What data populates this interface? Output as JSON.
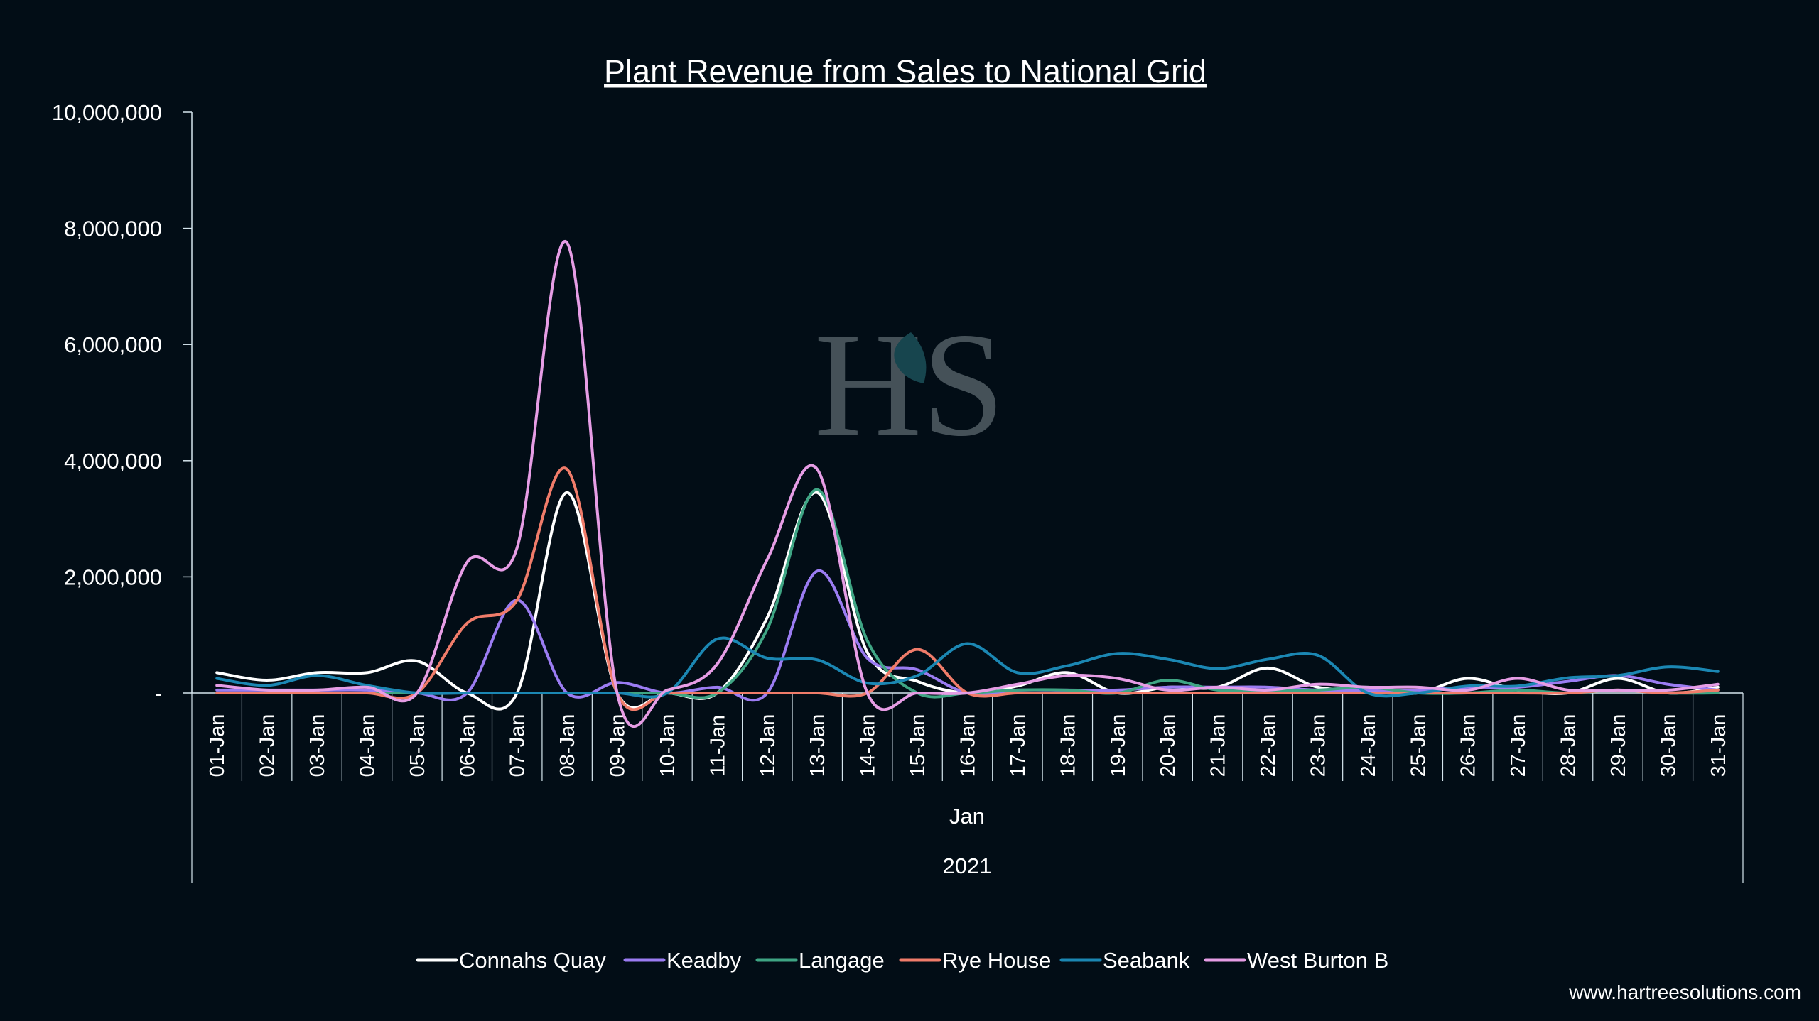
{
  "website": "www.hartreesolutions.com",
  "logo": {
    "name": "hartree-logo",
    "letters": "HS"
  },
  "chart_data": {
    "type": "line",
    "title": "Plant Revenue from Sales to National Grid",
    "xlabel": "Jan",
    "xlabel2": "2021",
    "ylabel": "",
    "ylim": [
      0,
      10000000
    ],
    "yticks": [
      "-",
      "2,000,000",
      "4,000,000",
      "6,000,000",
      "8,000,000",
      "10,000,000"
    ],
    "yticks_values": [
      0,
      2000000,
      4000000,
      6000000,
      8000000,
      10000000
    ],
    "grid": false,
    "legend_position": "bottom",
    "categories": [
      "01-Jan",
      "02-Jan",
      "03-Jan",
      "04-Jan",
      "05-Jan",
      "06-Jan",
      "07-Jan",
      "08-Jan",
      "09-Jan",
      "10-Jan",
      "11-Jan",
      "12-Jan",
      "13-Jan",
      "14-Jan",
      "15-Jan",
      "16-Jan",
      "17-Jan",
      "18-Jan",
      "19-Jan",
      "20-Jan",
      "21-Jan",
      "22-Jan",
      "23-Jan",
      "24-Jan",
      "25-Jan",
      "26-Jan",
      "27-Jan",
      "28-Jan",
      "29-Jan",
      "30-Jan",
      "31-Jan"
    ],
    "series": [
      {
        "name": "Connahs Quay",
        "color": "#ffffff",
        "values": [
          350000,
          220000,
          350000,
          350000,
          550000,
          0,
          0,
          3450000,
          0,
          0,
          0,
          1300000,
          3450000,
          700000,
          200000,
          0,
          120000,
          350000,
          0,
          100000,
          100000,
          430000,
          100000,
          50000,
          0,
          250000,
          50000,
          0,
          250000,
          0,
          100000
        ]
      },
      {
        "name": "Keadby",
        "color": "#9b7cf2",
        "values": [
          50000,
          50000,
          50000,
          50000,
          0,
          0,
          1600000,
          0,
          180000,
          0,
          100000,
          0,
          2100000,
          600000,
          400000,
          0,
          50000,
          50000,
          50000,
          100000,
          100000,
          100000,
          50000,
          50000,
          50000,
          100000,
          100000,
          200000,
          300000,
          150000,
          50000
        ]
      },
      {
        "name": "Langage",
        "color": "#3fa584",
        "values": [
          0,
          0,
          0,
          0,
          0,
          0,
          0,
          0,
          0,
          0,
          0,
          1100000,
          3500000,
          900000,
          0,
          0,
          50000,
          50000,
          0,
          220000,
          50000,
          50000,
          50000,
          100000,
          0,
          0,
          50000,
          0,
          50000,
          0,
          0
        ]
      },
      {
        "name": "Rye House",
        "color": "#f07c6a",
        "values": [
          0,
          0,
          0,
          0,
          0,
          1200000,
          1600000,
          3850000,
          0,
          0,
          0,
          0,
          0,
          0,
          750000,
          0,
          0,
          0,
          0,
          0,
          0,
          0,
          0,
          0,
          0,
          0,
          0,
          0,
          50000,
          0,
          50000
        ]
      },
      {
        "name": "Seabank",
        "color": "#1b87b3",
        "values": [
          250000,
          130000,
          300000,
          130000,
          0,
          0,
          0,
          0,
          0,
          0,
          930000,
          600000,
          570000,
          170000,
          300000,
          850000,
          350000,
          470000,
          680000,
          580000,
          420000,
          580000,
          650000,
          0,
          0,
          120000,
          120000,
          260000,
          300000,
          450000,
          370000
        ]
      },
      {
        "name": "West Burton B",
        "color": "#e69de5",
        "values": [
          130000,
          50000,
          50000,
          100000,
          0,
          2250000,
          2500000,
          7750000,
          0,
          50000,
          500000,
          2300000,
          3850000,
          0,
          0,
          0,
          150000,
          300000,
          250000,
          50000,
          100000,
          50000,
          150000,
          100000,
          100000,
          50000,
          250000,
          50000,
          50000,
          50000,
          150000
        ]
      }
    ]
  }
}
